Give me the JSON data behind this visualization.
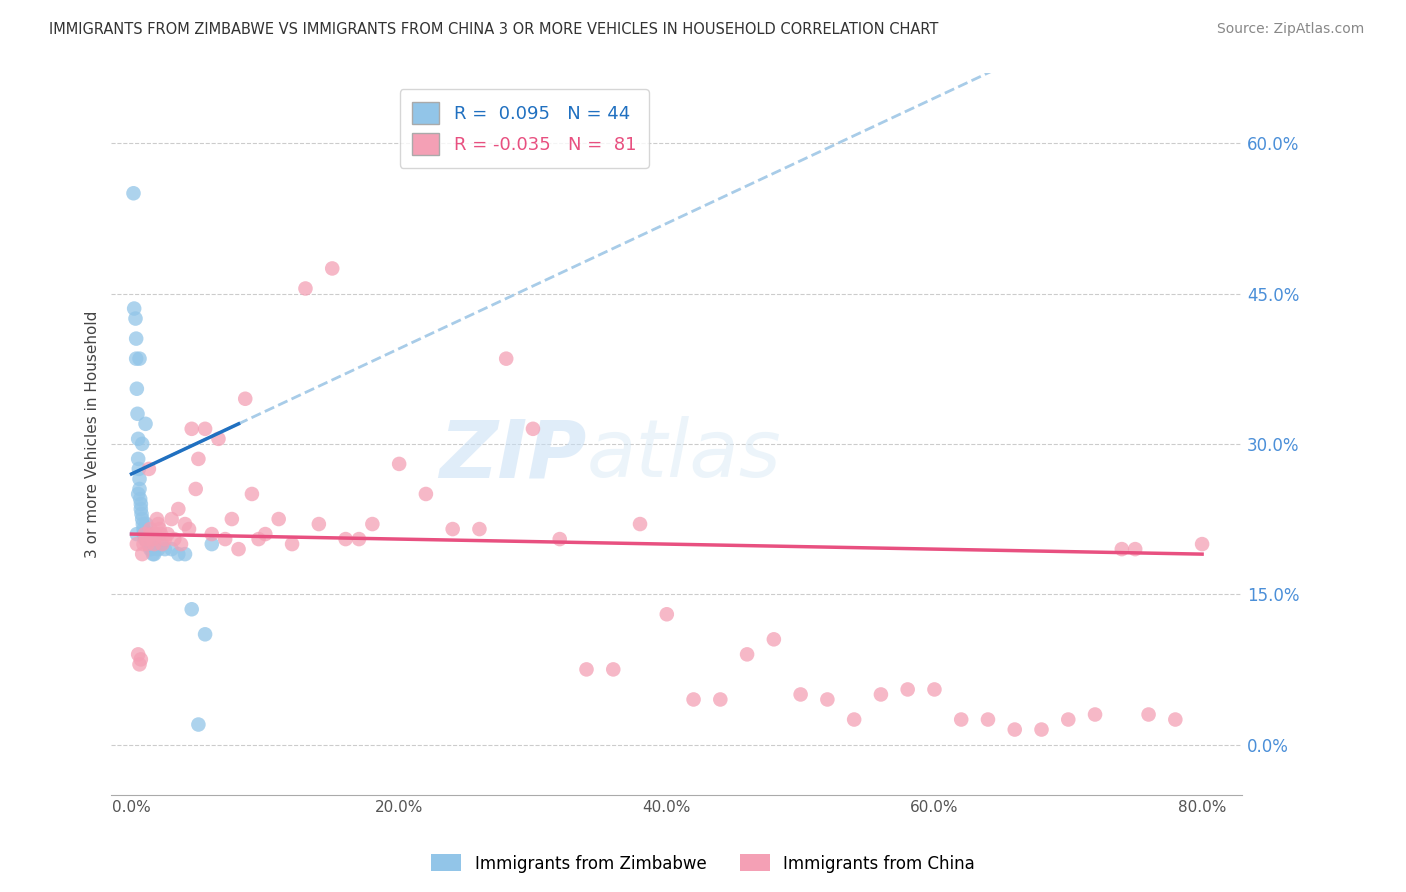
{
  "title": "IMMIGRANTS FROM ZIMBABWE VS IMMIGRANTS FROM CHINA 3 OR MORE VEHICLES IN HOUSEHOLD CORRELATION CHART",
  "source": "Source: ZipAtlas.com",
  "xlabel_vals": [
    0.0,
    20.0,
    40.0,
    60.0,
    80.0
  ],
  "ylabel_vals": [
    0.0,
    15.0,
    30.0,
    45.0,
    60.0
  ],
  "xlim": [
    -1.5,
    83
  ],
  "ylim": [
    -5,
    67
  ],
  "zimbabwe_color": "#92C5E8",
  "china_color": "#F4A0B5",
  "trendline_zimbabwe_color": "#2070C0",
  "trendline_china_color": "#E85080",
  "dashed_line_color": "#A8CCE8",
  "R_zimbabwe": 0.095,
  "N_zimbabwe": 44,
  "R_china": -0.035,
  "N_china": 81,
  "watermark": "ZIPatlas",
  "legend_label_zimbabwe": "Immigrants from Zimbabwe",
  "legend_label_china": "Immigrants from China",
  "zimbabwe_x": [
    0.15,
    0.2,
    0.3,
    0.35,
    0.35,
    0.4,
    0.45,
    0.5,
    0.5,
    0.55,
    0.6,
    0.6,
    0.65,
    0.7,
    0.7,
    0.75,
    0.8,
    0.85,
    0.9,
    0.9,
    1.0,
    1.0,
    1.05,
    1.1,
    1.2,
    1.3,
    1.4,
    1.5,
    1.6,
    1.7,
    2.0,
    2.2,
    2.5,
    3.0,
    3.5,
    4.0,
    4.5,
    5.0,
    5.5,
    6.0,
    0.4,
    0.5,
    0.6,
    0.8
  ],
  "zimbabwe_y": [
    55.0,
    43.5,
    42.5,
    40.5,
    38.5,
    35.5,
    33.0,
    30.5,
    28.5,
    27.5,
    26.5,
    25.5,
    24.5,
    24.0,
    23.5,
    23.0,
    22.5,
    22.0,
    21.5,
    21.0,
    21.0,
    20.5,
    32.0,
    22.0,
    21.0,
    20.0,
    19.5,
    19.5,
    19.0,
    19.0,
    19.5,
    20.0,
    19.5,
    19.5,
    19.0,
    19.0,
    13.5,
    2.0,
    11.0,
    20.0,
    21.0,
    25.0,
    38.5,
    30.0
  ],
  "china_x": [
    0.4,
    0.5,
    0.6,
    0.7,
    0.8,
    0.9,
    1.0,
    1.1,
    1.2,
    1.3,
    1.4,
    1.5,
    1.6,
    1.7,
    1.8,
    1.9,
    2.0,
    2.1,
    2.2,
    2.3,
    2.5,
    2.7,
    3.0,
    3.2,
    3.5,
    3.7,
    4.0,
    4.3,
    4.5,
    4.8,
    5.0,
    5.5,
    6.0,
    6.5,
    7.0,
    7.5,
    8.0,
    8.5,
    9.0,
    9.5,
    10.0,
    11.0,
    12.0,
    13.0,
    14.0,
    15.0,
    16.0,
    17.0,
    18.0,
    20.0,
    22.0,
    24.0,
    26.0,
    28.0,
    30.0,
    32.0,
    34.0,
    36.0,
    38.0,
    40.0,
    42.0,
    44.0,
    46.0,
    48.0,
    50.0,
    52.0,
    54.0,
    56.0,
    58.0,
    60.0,
    62.0,
    64.0,
    66.0,
    68.0,
    70.0,
    72.0,
    74.0,
    76.0,
    78.0,
    80.0,
    75.0
  ],
  "china_y": [
    20.0,
    9.0,
    8.0,
    8.5,
    19.0,
    20.0,
    21.0,
    20.5,
    20.0,
    27.5,
    21.5,
    21.0,
    20.5,
    20.0,
    21.0,
    22.5,
    22.0,
    21.5,
    21.0,
    20.0,
    20.5,
    21.0,
    22.5,
    20.5,
    23.5,
    20.0,
    22.0,
    21.5,
    31.5,
    25.5,
    28.5,
    31.5,
    21.0,
    30.5,
    20.5,
    22.5,
    19.5,
    34.5,
    25.0,
    20.5,
    21.0,
    22.5,
    20.0,
    45.5,
    22.0,
    47.5,
    20.5,
    20.5,
    22.0,
    28.0,
    25.0,
    21.5,
    21.5,
    38.5,
    31.5,
    20.5,
    7.5,
    7.5,
    22.0,
    13.0,
    4.5,
    4.5,
    9.0,
    10.5,
    5.0,
    4.5,
    2.5,
    5.0,
    5.5,
    5.5,
    2.5,
    2.5,
    1.5,
    1.5,
    2.5,
    3.0,
    19.5,
    3.0,
    2.5,
    20.0,
    19.5
  ]
}
